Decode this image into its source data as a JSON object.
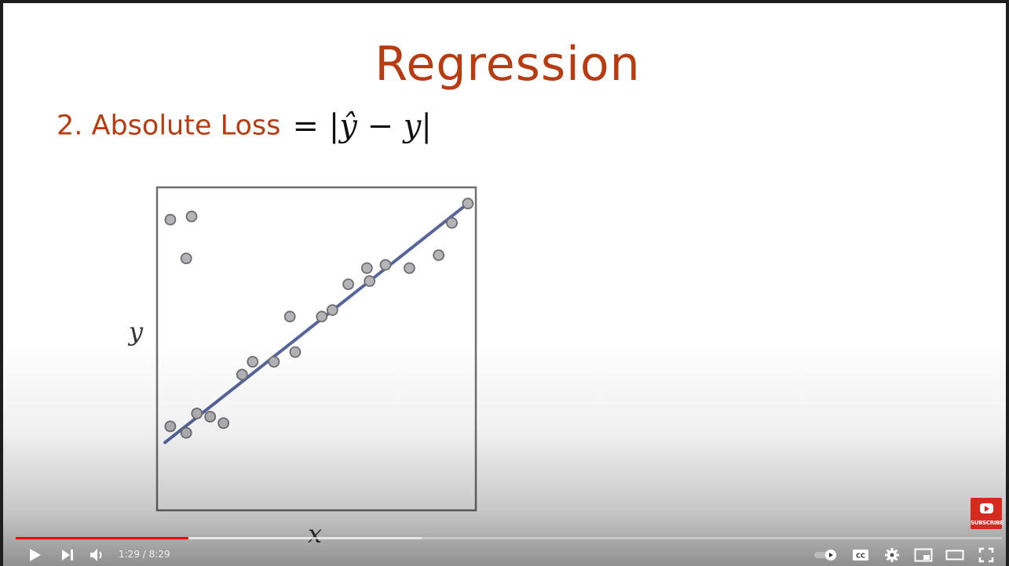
{
  "slide": {
    "title": "Regression",
    "subtitle_label": "2. Absolute Loss",
    "formula": {
      "equals": "=",
      "bar_open": "|",
      "y_hat": "ŷ",
      "minus": "−",
      "y": "y",
      "bar_close": "|"
    }
  },
  "chart_data": {
    "type": "scatter",
    "xlabel": "x",
    "ylabel": "y",
    "x_ticks": [],
    "y_ticks": [],
    "points": [
      [
        0.05,
        0.9
      ],
      [
        0.13,
        0.91
      ],
      [
        0.11,
        0.78
      ],
      [
        0.05,
        0.26
      ],
      [
        0.11,
        0.24
      ],
      [
        0.15,
        0.3
      ],
      [
        0.2,
        0.29
      ],
      [
        0.25,
        0.27
      ],
      [
        0.32,
        0.42
      ],
      [
        0.36,
        0.46
      ],
      [
        0.44,
        0.46
      ],
      [
        0.52,
        0.49
      ],
      [
        0.5,
        0.6
      ],
      [
        0.62,
        0.6
      ],
      [
        0.66,
        0.62
      ],
      [
        0.72,
        0.7
      ],
      [
        0.79,
        0.75
      ],
      [
        0.8,
        0.71
      ],
      [
        0.86,
        0.76
      ],
      [
        0.95,
        0.75
      ],
      [
        1.06,
        0.79
      ],
      [
        1.11,
        0.89
      ],
      [
        1.17,
        0.95
      ]
    ],
    "fit_line": {
      "x": [
        0.03,
        1.17
      ],
      "y": [
        0.21,
        0.95
      ],
      "color": "#56659b"
    },
    "point_fill": "#b4b4b8",
    "point_stroke": "#6e6e72",
    "xlim": [
      0,
      1.2
    ],
    "ylim": [
      0,
      1
    ],
    "grid": false,
    "legend": false
  },
  "player": {
    "time_current": "1:29",
    "time_sep": "/",
    "time_total": "8:29",
    "played_fraction": 0.175,
    "buffered_fraction": 0.412,
    "subscribe_label": "SUBSCRIBE",
    "colors": {
      "played": "#ff0000",
      "subscribe": "#d32b1f"
    },
    "icons": {
      "play": "play-icon",
      "next": "next-icon",
      "volume": "volume-icon",
      "autoplay": "autoplay-toggle-icon",
      "captions": "captions-icon",
      "settings": "settings-icon",
      "miniplayer": "miniplayer-icon",
      "theater": "theater-icon",
      "fullscreen": "fullscreen-icon"
    },
    "captions_label": "CC"
  }
}
